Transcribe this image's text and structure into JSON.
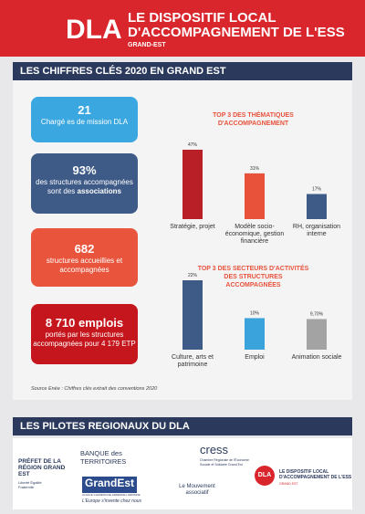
{
  "header": {
    "logo": "DLA",
    "title": "LE DISPOSITIF LOCAL D'ACCOMPAGNEMENT DE L'ESS",
    "subtitle": "GRAND-EST"
  },
  "section1_title": "LES CHIFFRES CLÉS 2020 EN GRAND EST",
  "stats": [
    {
      "value": "21",
      "text": "Chargé es de mission DLA"
    },
    {
      "value": "93%",
      "text": "des structures accompagnées sont des",
      "bold": "associations"
    },
    {
      "value": "682",
      "text": "structures accueillies et accompagnées"
    },
    {
      "value": "8 710 emplois",
      "text": "portés par les structures accompagnées pour 4 179 ETP"
    }
  ],
  "chart_data": [
    {
      "type": "bar",
      "title": "TOP 3 DES THÉMATIQUES D'ACCOMPAGNEMENT",
      "categories": [
        "Stratégie, projet",
        "Modèle socio-économique, gestion financière",
        "RH, organisation interne"
      ],
      "values": [
        47,
        31,
        17
      ],
      "value_labels": [
        "47%",
        "31%",
        "17%"
      ],
      "colors": [
        "#b81f27",
        "#e8523b",
        "#3e5a87"
      ]
    },
    {
      "type": "bar",
      "title": "TOP 3 DES SECTEURS D'ACTIVITÉS DES STRUCTURES ACCOMPAGNÉES",
      "categories": [
        "Culture, arts et patrimoine",
        "Emploi",
        "Animation sociale"
      ],
      "values": [
        22,
        10,
        9.7
      ],
      "value_labels": [
        "22%",
        "10%",
        "9,70%"
      ],
      "colors": [
        "#3e5a87",
        "#3ba3dc",
        "#a3a3a3"
      ]
    }
  ],
  "source": "Source Enée : Chiffres clés extrait des conventions 2020",
  "section2_title": "LES PILOTES REGIONAUX DU DLA",
  "logos": {
    "prefet": "PRÉFET DE LA RÉGION GRAND EST",
    "devise": "Liberté Égalité Fraternité",
    "banque": "BANQUE des TERRITOIRES",
    "grandest": "GrandEst",
    "grandest_sub": "ALSACE CHAMPAGNE-ARDENNE LORRAINE",
    "grandest_slogan": "L'Europe s'invente chez nous",
    "cress": "cress",
    "cress_sub": "Chambre Régionale de l'Économie Sociale et Solidaire Grand Est",
    "mouvement": "Le Mouvement associatif",
    "dla": "DLA",
    "dla_text": "LE DISPOSITIF LOCAL D'ACCOMPAGNEMENT DE L'ESS",
    "dla_sub": "GRAND EST"
  }
}
